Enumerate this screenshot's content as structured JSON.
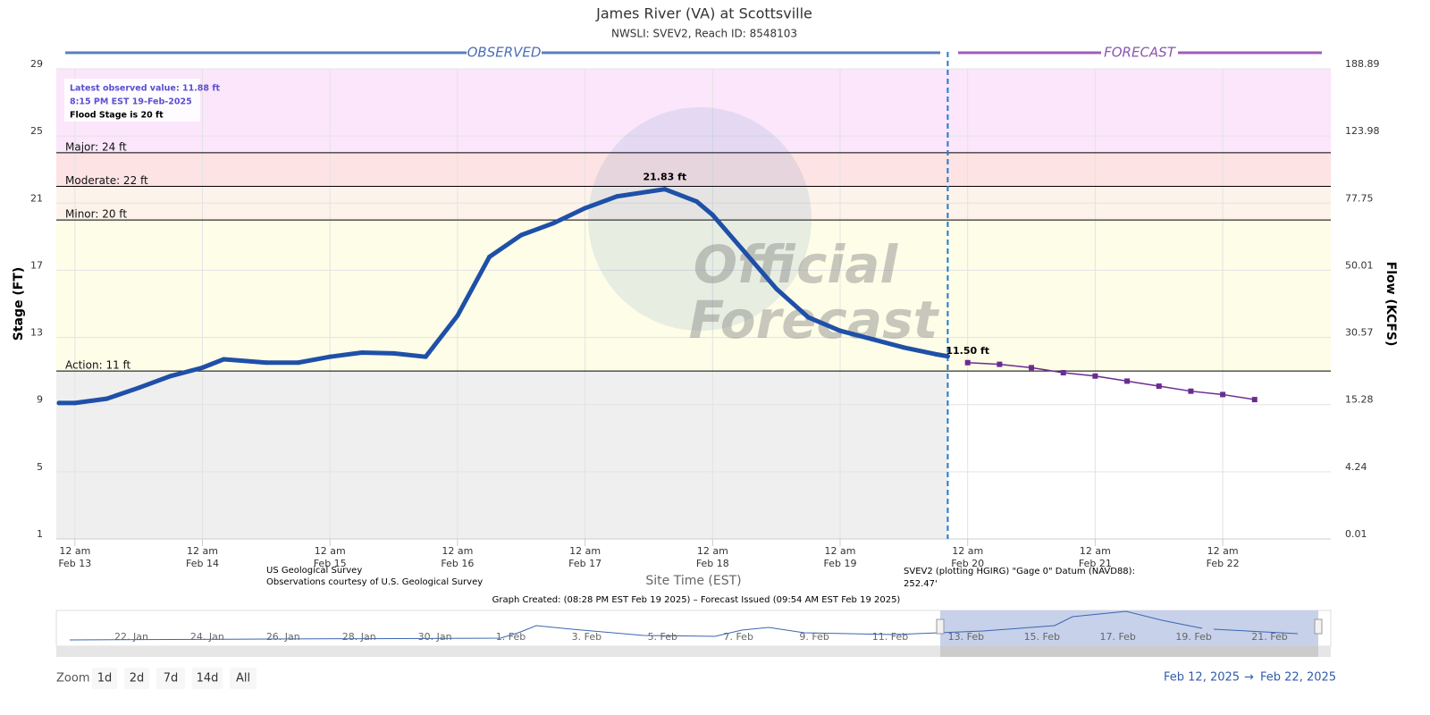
{
  "chart_data": {
    "type": "line",
    "title": "James River (VA) at Scottsville",
    "subtitle": "NWSLI: SVEV2, Reach ID: 8548103",
    "observed_header": "OBSERVED",
    "forecast_header": "FORECAST",
    "x_label": "Site Time (EST)",
    "y_label": "Stage (FT)",
    "y2_label": "Flow (KCFS)",
    "ylim": [
      1,
      29
    ],
    "yticks": [
      1,
      5,
      9,
      13,
      17,
      21,
      25,
      29
    ],
    "y2_labels": [
      0.01,
      4.24,
      15.28,
      30.57,
      50.01,
      77.75,
      123.98,
      188.89
    ],
    "xlim": [
      "2025-02-12T20:30",
      "2025-02-22T20:20"
    ],
    "xticks": [
      {
        "value": "2025-02-13T00:00",
        "label": "12 am\nFeb 13"
      },
      {
        "value": "2025-02-14T00:00",
        "label": "12 am\nFeb 14"
      },
      {
        "value": "2025-02-15T00:00",
        "label": "12 am\nFeb 15"
      },
      {
        "value": "2025-02-16T00:00",
        "label": "12 am\nFeb 16"
      },
      {
        "value": "2025-02-17T00:00",
        "label": "12 am\nFeb 17"
      },
      {
        "value": "2025-02-18T00:00",
        "label": "12 am\nFeb 18"
      },
      {
        "value": "2025-02-19T00:00",
        "label": "12 am\nFeb 19"
      },
      {
        "value": "2025-02-20T00:00",
        "label": "12 am\nFeb 20"
      },
      {
        "value": "2025-02-21T00:00",
        "label": "12 am\nFeb 21"
      },
      {
        "value": "2025-02-22T00:00",
        "label": "12 am\nFeb 22"
      }
    ],
    "grid": true,
    "thresholds": [
      {
        "label": "Major: 24 ft",
        "value": 24,
        "color": "#fbe6fb"
      },
      {
        "label": "Moderate: 22 ft",
        "value": 22,
        "color": "#fde3e3"
      },
      {
        "label": "Minor: 20 ft",
        "value": 20,
        "color": "#fdf3ea"
      },
      {
        "label": "Action: 11 ft",
        "value": 11,
        "color": "#fefde8"
      }
    ],
    "below_action_color": "#efefef",
    "series": [
      {
        "name": "Observed",
        "color": "#1f50a8",
        "x": [
          "2025-02-12T21:00",
          "2025-02-13T00:00",
          "2025-02-13T06:00",
          "2025-02-13T12:00",
          "2025-02-13T18:00",
          "2025-02-14T00:00",
          "2025-02-14T04:00",
          "2025-02-14T12:00",
          "2025-02-14T18:00",
          "2025-02-15T00:00",
          "2025-02-15T06:00",
          "2025-02-15T12:00",
          "2025-02-15T18:00",
          "2025-02-16T00:00",
          "2025-02-16T06:00",
          "2025-02-16T12:00",
          "2025-02-16T18:00",
          "2025-02-17T00:00",
          "2025-02-17T06:00",
          "2025-02-17T15:00",
          "2025-02-17T21:00",
          "2025-02-18T00:00",
          "2025-02-18T06:00",
          "2025-02-18T12:00",
          "2025-02-18T18:00",
          "2025-02-19T00:00",
          "2025-02-19T06:00",
          "2025-02-19T12:00",
          "2025-02-19T18:00",
          "2025-02-19T20:15"
        ],
        "values": [
          9.1,
          9.1,
          9.35,
          10.0,
          10.7,
          11.2,
          11.7,
          11.5,
          11.5,
          11.85,
          12.1,
          12.05,
          11.85,
          14.3,
          17.8,
          19.1,
          19.8,
          20.7,
          21.4,
          21.83,
          21.1,
          20.3,
          18.1,
          15.9,
          14.2,
          13.4,
          12.9,
          12.4,
          12.0,
          11.88
        ],
        "value_labels": [
          null,
          null,
          null,
          null,
          null,
          null,
          null,
          null,
          null,
          null,
          null,
          null,
          null,
          null,
          null,
          null,
          null,
          null,
          null,
          "21.83 ft",
          null,
          null,
          null,
          null,
          null,
          null,
          null,
          null,
          null,
          null
        ]
      },
      {
        "name": "Forecast",
        "color": "#6a2c91",
        "x": [
          "2025-02-20T00:00",
          "2025-02-20T06:00",
          "2025-02-20T12:00",
          "2025-02-20T18:00",
          "2025-02-21T00:00",
          "2025-02-21T06:00",
          "2025-02-21T12:00",
          "2025-02-21T18:00",
          "2025-02-22T00:00",
          "2025-02-22T06:00"
        ],
        "values": [
          11.5,
          11.4,
          11.2,
          10.9,
          10.7,
          10.4,
          10.1,
          9.8,
          9.6,
          9.3
        ],
        "value_labels": [
          "11.50 ft",
          null,
          null,
          null,
          null,
          null,
          null,
          null,
          null,
          null
        ]
      }
    ],
    "info_box": [
      "Latest observed value: 11.88 ft",
      "8:15 PM EST 19-Feb-2025",
      "Flood Stage is 20 ft"
    ],
    "watermark": [
      "Official",
      "Forecast"
    ],
    "credits": [
      "US Geological Survey",
      "Observations courtesy of U.S. Geological Survey"
    ],
    "datum": "SVEV2 (plotting HGIRG) \"Gage 0\" Datum (NAVD88):\n252.47'",
    "footer": "Graph Created: (08:28 PM EST Feb 19 2025) – Forecast Issued (09:54 AM EST Feb 19 2025)",
    "navigator_labels": [
      "22. Jan",
      "24. Jan",
      "26. Jan",
      "28. Jan",
      "30. Jan",
      "1. Feb",
      "3. Feb",
      "5. Feb",
      "7. Feb",
      "9. Feb",
      "11. Feb",
      "13. Feb",
      "15. Feb",
      "17. Feb",
      "19. Feb",
      "21. Feb"
    ],
    "zoom_label": "Zoom",
    "zoom_buttons": [
      "1d",
      "2d",
      "7d",
      "14d",
      "All"
    ],
    "range": [
      "Feb 12, 2025",
      "→",
      "Feb 22, 2025"
    ]
  }
}
